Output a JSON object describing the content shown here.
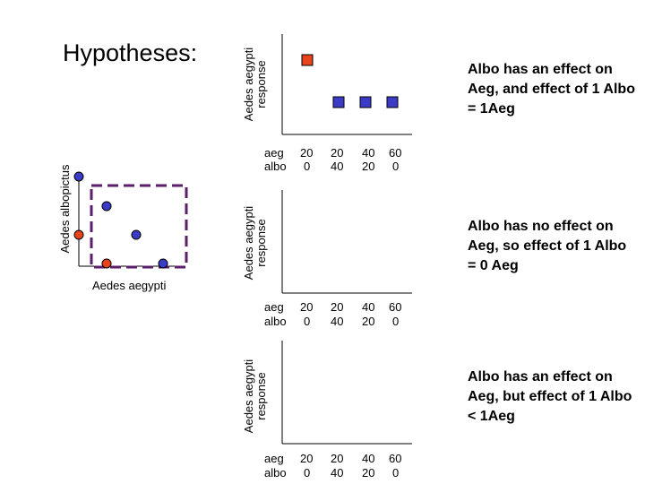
{
  "title": "Hypotheses:",
  "schematic": {
    "xlabel": "Aedes aegypti",
    "ylabel": "Aedes albopictus",
    "colors": {
      "blue": "#3b3bc8",
      "red": "#e8431b",
      "box": "#5a1e6b"
    }
  },
  "rows_labels": {
    "aeg": "aeg",
    "albo": "albo"
  },
  "panels": [
    {
      "ylabel_line1": "Aedes aegypti",
      "ylabel_line2": "response",
      "columns": [
        {
          "aeg": "20",
          "albo": "0"
        },
        {
          "aeg": "20",
          "albo": "40"
        },
        {
          "aeg": "40",
          "albo": "20"
        },
        {
          "aeg": "60",
          "albo": "0"
        }
      ],
      "hypothesis": "Albo has an effect on Aeg, and effect of 1 Albo = 1Aeg"
    },
    {
      "ylabel_line1": "Aedes aegypti",
      "ylabel_line2": "response",
      "columns": [
        {
          "aeg": "20",
          "albo": "0"
        },
        {
          "aeg": "20",
          "albo": "40"
        },
        {
          "aeg": "40",
          "albo": "20"
        },
        {
          "aeg": "60",
          "albo": "0"
        }
      ],
      "hypothesis": "Albo has no effect on Aeg, so effect of 1 Albo = 0 Aeg"
    },
    {
      "ylabel_line1": "Aedes aegypti",
      "ylabel_line2": "response",
      "columns": [
        {
          "aeg": "20",
          "albo": "0"
        },
        {
          "aeg": "20",
          "albo": "40"
        },
        {
          "aeg": "40",
          "albo": "20"
        },
        {
          "aeg": "60",
          "albo": "0"
        }
      ],
      "hypothesis": "Albo has an effect on Aeg, but effect of 1 Albo < 1Aeg"
    }
  ]
}
